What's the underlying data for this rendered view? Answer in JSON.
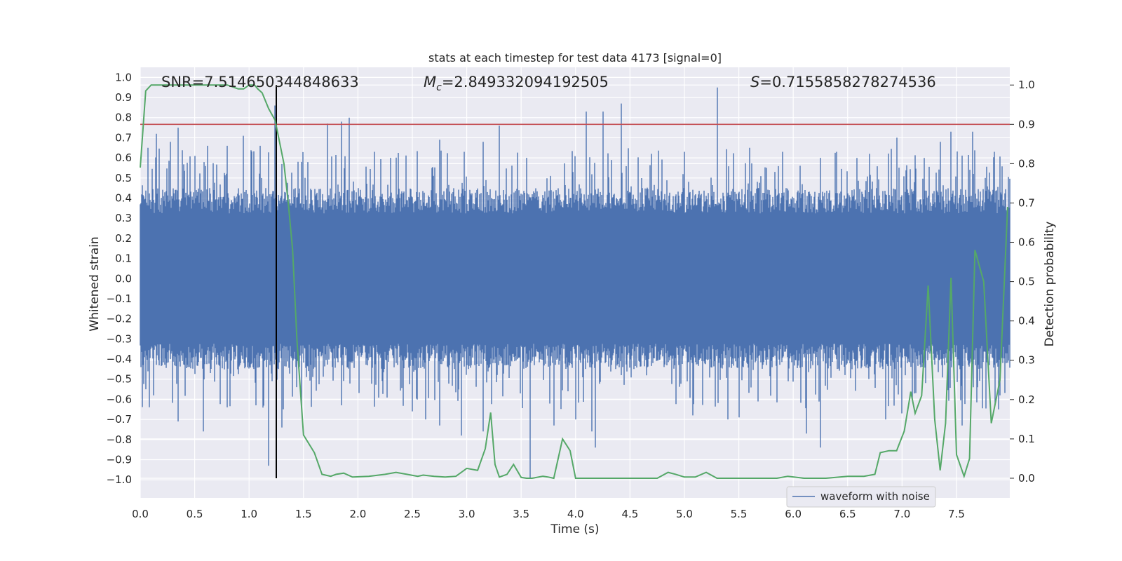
{
  "colors": {
    "background": "#ffffff",
    "plot_area": "#eaeaf2",
    "grid": "#ffffff",
    "waveform": "#4c72b0",
    "probability": "#55a868",
    "threshold": "#c44e52",
    "marker": "#000000"
  },
  "chart_data": {
    "type": "line",
    "title": "stats at each timestep for test data 4173 [signal=0]",
    "xlabel": "Time (s)",
    "ylabel_left": "Whitened strain",
    "ylabel_right": "Detection probability",
    "xlim": [
      0.0,
      7.99
    ],
    "ylim_left": [
      -1.09,
      1.05
    ],
    "ylim_right": [
      -0.05,
      1.045
    ],
    "x_ticks": [
      "0.0",
      "0.5",
      "1.0",
      "1.5",
      "2.0",
      "2.5",
      "3.0",
      "3.5",
      "4.0",
      "4.5",
      "5.0",
      "5.5",
      "6.0",
      "6.5",
      "7.0",
      "7.5"
    ],
    "y_left_ticks": [
      "1.0",
      "0.9",
      "0.8",
      "0.7",
      "0.6",
      "0.5",
      "0.4",
      "0.3",
      "0.2",
      "0.1",
      "0.0",
      "-0.1",
      "-0.2",
      "-0.3",
      "-0.4",
      "-0.5",
      "-0.6",
      "-0.7",
      "-0.8",
      "-0.9",
      "-1.0"
    ],
    "y_right_ticks": [
      "1.0",
      "0.9",
      "0.8",
      "0.7",
      "0.6",
      "0.5",
      "0.4",
      "0.3",
      "0.2",
      "0.1",
      "0.0"
    ],
    "annotations": {
      "snr": "SNR=7.514650344848633",
      "mc_symbol": "M",
      "mc_sub": "c",
      "mc_value": "=2.849332094192505",
      "s_symbol": "S",
      "s_value": "=0.7155858278274536"
    },
    "grid": true,
    "legend": {
      "placement": "lower-center-right",
      "entries": [
        "waveform with noise"
      ]
    },
    "waveform": {
      "name": "waveform with noise",
      "axis": "left",
      "typical_envelope": [
        -0.45,
        0.45
      ],
      "peaks": [
        [
          0.07,
          0.65
        ],
        [
          0.15,
          0.72
        ],
        [
          0.28,
          0.68
        ],
        [
          0.35,
          0.75
        ],
        [
          0.5,
          0.61
        ],
        [
          0.62,
          0.66
        ],
        [
          0.8,
          0.66
        ],
        [
          0.95,
          0.71
        ],
        [
          1.1,
          0.66
        ],
        [
          1.24,
          0.86
        ],
        [
          1.72,
          0.77
        ],
        [
          1.85,
          0.78
        ],
        [
          1.92,
          0.8
        ],
        [
          2.15,
          0.63
        ],
        [
          2.3,
          0.6
        ],
        [
          2.75,
          0.69
        ],
        [
          2.98,
          0.63
        ],
        [
          3.15,
          0.68
        ],
        [
          3.3,
          0.76
        ],
        [
          3.55,
          0.6
        ],
        [
          4.1,
          0.83
        ],
        [
          4.25,
          0.83
        ],
        [
          4.42,
          0.87
        ],
        [
          4.7,
          0.62
        ],
        [
          5.0,
          0.63
        ],
        [
          5.3,
          0.95
        ],
        [
          5.6,
          0.65
        ],
        [
          5.9,
          0.63
        ],
        [
          6.25,
          0.6
        ],
        [
          6.4,
          0.63
        ],
        [
          6.7,
          0.62
        ],
        [
          6.95,
          0.7
        ],
        [
          7.35,
          0.68
        ],
        [
          7.45,
          0.73
        ],
        [
          7.65,
          0.73
        ],
        [
          7.85,
          0.63
        ]
      ],
      "troughs": [
        [
          0.05,
          -0.55
        ],
        [
          0.12,
          -0.58
        ],
        [
          0.35,
          -0.71
        ],
        [
          0.58,
          -0.76
        ],
        [
          0.8,
          -0.64
        ],
        [
          1.06,
          -0.63
        ],
        [
          1.18,
          -0.93
        ],
        [
          1.3,
          -0.74
        ],
        [
          1.85,
          -0.63
        ],
        [
          2.5,
          -0.66
        ],
        [
          2.62,
          -0.7
        ],
        [
          2.75,
          -0.73
        ],
        [
          2.95,
          -0.78
        ],
        [
          3.15,
          -0.76
        ],
        [
          3.58,
          -0.99
        ],
        [
          3.8,
          -0.73
        ],
        [
          4.0,
          -0.7
        ],
        [
          4.15,
          -0.76
        ],
        [
          4.18,
          -0.84
        ],
        [
          5.08,
          -0.68
        ],
        [
          5.4,
          -0.7
        ],
        [
          5.5,
          -0.69
        ],
        [
          6.12,
          -0.77
        ],
        [
          6.25,
          -0.84
        ],
        [
          6.85,
          -0.7
        ],
        [
          7.0,
          -0.67
        ],
        [
          7.55,
          -0.73
        ],
        [
          7.9,
          -0.58
        ]
      ]
    },
    "detection_probability": {
      "axis": "right",
      "x": [
        0.0,
        0.05,
        0.1,
        0.2,
        0.4,
        0.6,
        0.8,
        0.9,
        0.95,
        1.0,
        1.05,
        1.08,
        1.12,
        1.18,
        1.24,
        1.32,
        1.36,
        1.4,
        1.44,
        1.5,
        1.6,
        1.67,
        1.75,
        1.8,
        1.87,
        1.95,
        2.1,
        2.25,
        2.35,
        2.45,
        2.55,
        2.6,
        2.7,
        2.8,
        2.9,
        3.0,
        3.1,
        3.17,
        3.22,
        3.26,
        3.3,
        3.37,
        3.43,
        3.5,
        3.55,
        3.6,
        3.7,
        3.75,
        3.8,
        3.88,
        3.95,
        4.0,
        4.05,
        4.12,
        4.25,
        4.4,
        4.6,
        4.75,
        4.85,
        4.92,
        5.0,
        5.1,
        5.2,
        5.3,
        5.5,
        5.7,
        5.85,
        5.95,
        6.1,
        6.3,
        6.5,
        6.65,
        6.75,
        6.8,
        6.88,
        6.95,
        7.02,
        7.08,
        7.12,
        7.18,
        7.24,
        7.3,
        7.35,
        7.4,
        7.45,
        7.5,
        7.57,
        7.62,
        7.67,
        7.75,
        7.82,
        7.9,
        7.97
      ],
      "y": [
        0.79,
        0.985,
        1.0,
        1.0,
        1.0,
        1.0,
        1.0,
        0.99,
        0.99,
        1.0,
        1.0,
        0.99,
        0.98,
        0.94,
        0.91,
        0.8,
        0.7,
        0.58,
        0.35,
        0.11,
        0.065,
        0.01,
        0.005,
        0.01,
        0.013,
        0.003,
        0.005,
        0.01,
        0.015,
        0.01,
        0.005,
        0.008,
        0.005,
        0.003,
        0.005,
        0.025,
        0.02,
        0.075,
        0.167,
        0.035,
        0.003,
        0.01,
        0.035,
        0.002,
        0.0,
        0.0,
        0.005,
        0.003,
        0.0,
        0.1,
        0.07,
        0.0,
        0.0,
        0.0,
        0.0,
        0.0,
        0.0,
        0.0,
        0.015,
        0.01,
        0.003,
        0.003,
        0.015,
        0.0,
        0.0,
        0.0,
        0.0,
        0.005,
        0.0,
        0.0,
        0.005,
        0.005,
        0.01,
        0.065,
        0.07,
        0.07,
        0.12,
        0.22,
        0.165,
        0.21,
        0.49,
        0.15,
        0.02,
        0.14,
        0.51,
        0.06,
        0.005,
        0.05,
        0.58,
        0.5,
        0.14,
        0.25,
        0.69
      ]
    },
    "threshold": {
      "axis": "right",
      "value": 0.9
    },
    "marker_x": 1.25
  }
}
